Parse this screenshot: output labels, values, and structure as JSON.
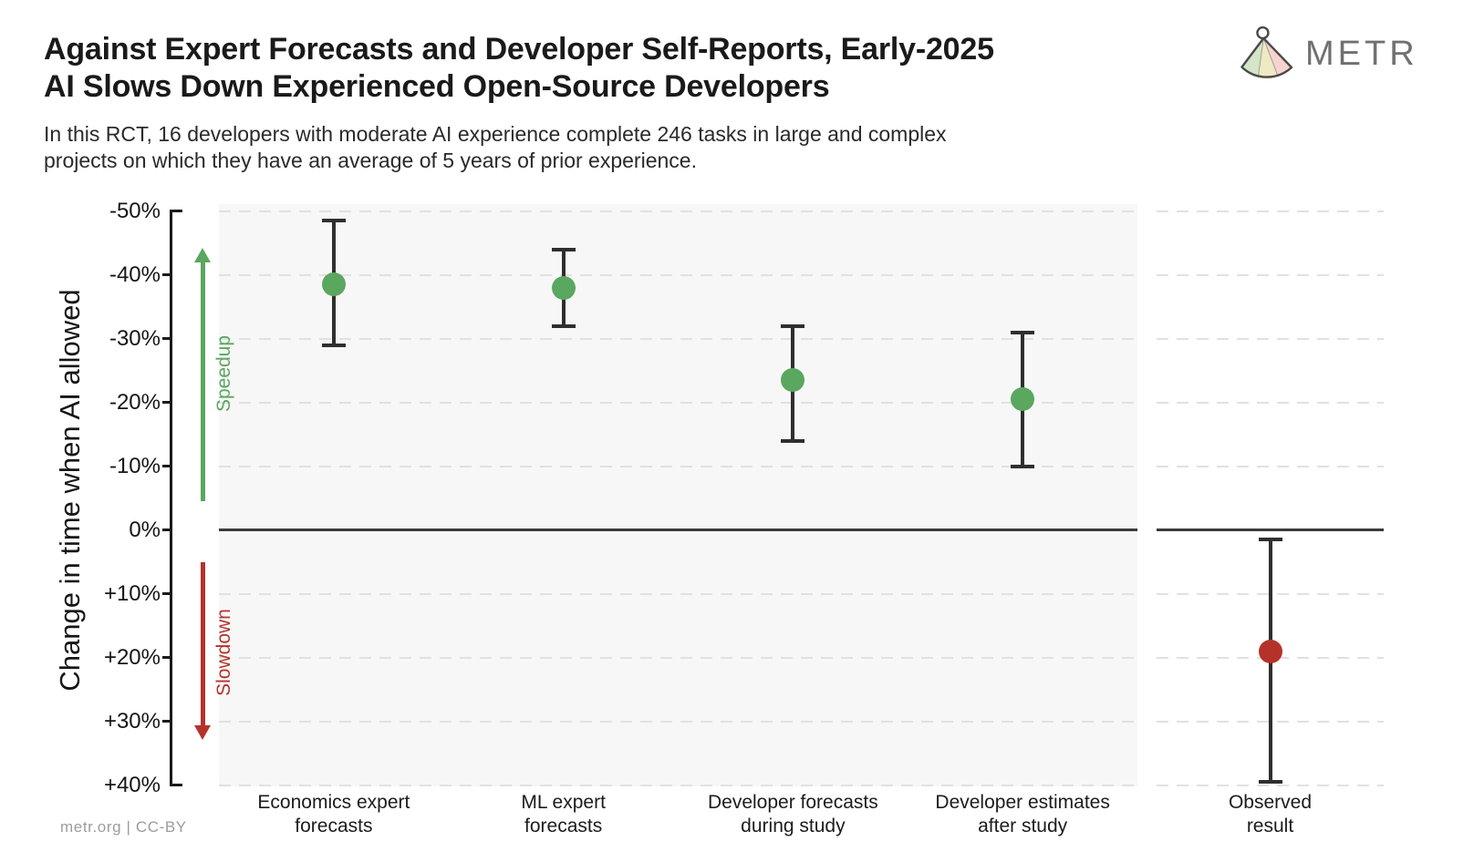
{
  "header": {
    "title": "Against Expert Forecasts and Developer Self-Reports, Early-2025\nAI Slows Down Experienced Open-Source Developers",
    "subtitle": "In this RCT, 16 developers with moderate AI experience complete 246 tasks in large and complex\nprojects on which they have an average of 5 years of prior experience.",
    "logo_text": "METR"
  },
  "footer": {
    "credit": "metr.org | CC-BY"
  },
  "colors": {
    "speedup_green": "#5aa75f",
    "slowdown_red": "#b5322b",
    "error_bar": "#2f2f2f",
    "zero_line": "#3b3b3b",
    "panel_background": "#f7f7f7"
  },
  "chart_data": {
    "type": "scatter",
    "title": "Against Expert Forecasts and Developer Self-Reports, Early-2025 AI Slows Down Experienced Open-Source Developers",
    "xlabel": "",
    "ylabel": "Change in time when AI allowed",
    "ylim": [
      -51,
      41
    ],
    "y_inverted_negative_on_top": true,
    "grid": "horizontal dashed",
    "zero_line": true,
    "legend_position": "none",
    "yticks": [
      {
        "value": -50,
        "label": "-50%"
      },
      {
        "value": -40,
        "label": "-40%"
      },
      {
        "value": -30,
        "label": "-30%"
      },
      {
        "value": -20,
        "label": "-20%"
      },
      {
        "value": -10,
        "label": "-10%"
      },
      {
        "value": 0,
        "label": "0%"
      },
      {
        "value": 10,
        "label": "+10%"
      },
      {
        "value": 20,
        "label": "+20%"
      },
      {
        "value": 30,
        "label": "+30%"
      },
      {
        "value": 40,
        "label": "+40%"
      }
    ],
    "annotations": [
      {
        "text": "Speedup",
        "color": "#5aa75f",
        "direction": "up",
        "meaning": "negative change in time"
      },
      {
        "text": "Slowdown",
        "color": "#b5322b",
        "direction": "down",
        "meaning": "positive change in time"
      }
    ],
    "points": [
      {
        "label": "Economics expert\nforecasts",
        "panel": "main",
        "value": -38.5,
        "ci_low": -48.5,
        "ci_high": -29,
        "color": "#5aa75f"
      },
      {
        "label": "ML expert\nforecasts",
        "panel": "main",
        "value": -38,
        "ci_low": -44,
        "ci_high": -32,
        "color": "#5aa75f"
      },
      {
        "label": "Developer forecasts\nduring study",
        "panel": "main",
        "value": -23.5,
        "ci_low": -32,
        "ci_high": -14,
        "color": "#5aa75f"
      },
      {
        "label": "Developer estimates\nafter study",
        "panel": "main",
        "value": -20.5,
        "ci_low": -31,
        "ci_high": -10,
        "color": "#5aa75f"
      },
      {
        "label": "Observed\nresult",
        "panel": "right",
        "value": 19,
        "ci_low": 1.5,
        "ci_high": 39.5,
        "color": "#b5322b"
      }
    ]
  }
}
